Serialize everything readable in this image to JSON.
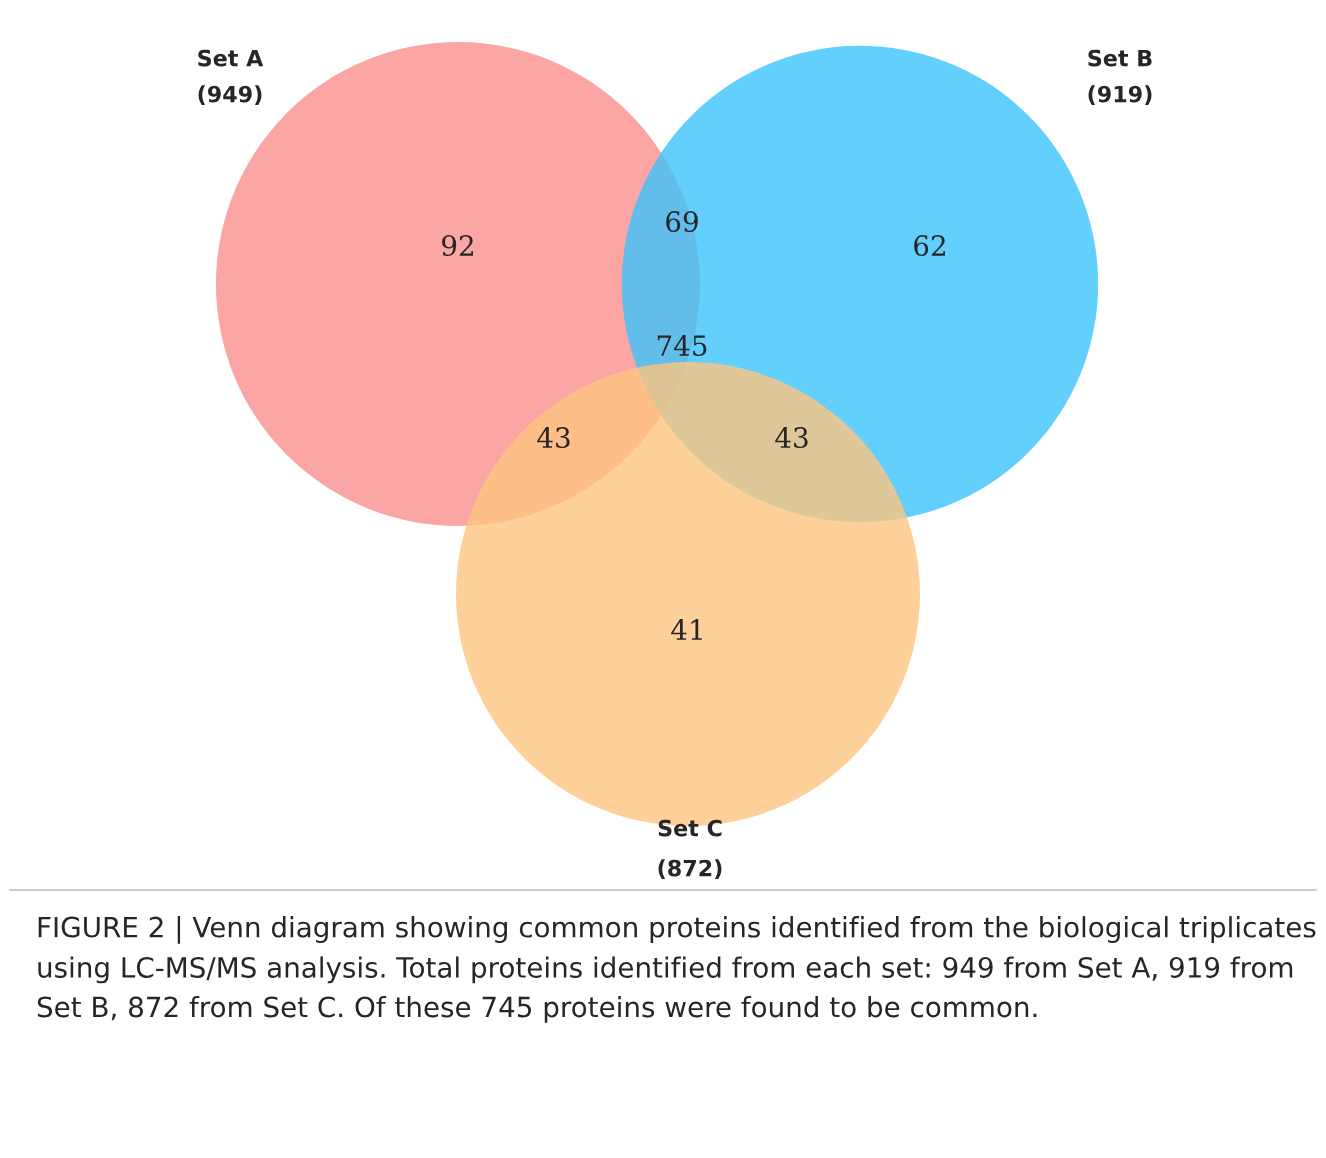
{
  "chart_data": {
    "type": "other",
    "categories": [
      "Set A",
      "Set B",
      "Set C"
    ],
    "values": [
      949,
      919,
      872
    ],
    "value_labels": [
      "(949)",
      "(919)",
      "(872)"
    ],
    "colors": [
      "#fb8f8f",
      "#3cc3fc",
      "#fdc67f"
    ],
    "annotations": [
      "92",
      "69",
      "62",
      "745",
      "43",
      "43",
      "41",
      "FIGURE 2 | Venn diagram showing common proteins identified from the biological triplicates using LC-MS/MS analysis. Total proteins identified from each set: 949 from Set A, 919 from Set B, 872 from Set C. Of these 745 proteins were found to be common."
    ]
  }
}
